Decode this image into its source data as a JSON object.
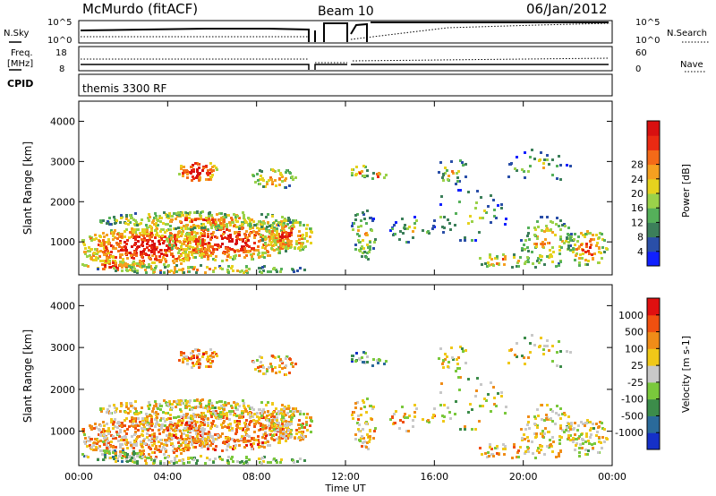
{
  "header": {
    "station": "McMurdo (fitACF)",
    "beam": "Beam 10",
    "date": "06/Jan/2012"
  },
  "strip_nsky": {
    "left_label": "N.Sky",
    "right_label": "N.Search",
    "left_ticks": [
      "10^5",
      "10^0"
    ],
    "right_ticks": [
      "10^5",
      "10^0"
    ]
  },
  "strip_freq": {
    "left_label_1": "Freq.",
    "left_label_2": "[MHz]",
    "right_label": "Nave",
    "left_ticks": [
      "18",
      "8"
    ],
    "right_ticks": [
      "60",
      "0"
    ]
  },
  "cpid": {
    "label": "CPID",
    "value": "themis 3300 RF"
  },
  "chart_data": [
    {
      "type": "heatmap",
      "name": "power",
      "ylabel": "Slant Range [km]",
      "xlabel": "Time UT",
      "ylim": [
        180,
        4500
      ],
      "yticks": [
        "1000",
        "2000",
        "3000",
        "4000"
      ],
      "xticks": [
        "00:00",
        "04:00",
        "08:00",
        "12:00",
        "16:00",
        "20:00",
        "00:00"
      ],
      "colorbar": {
        "label": "Power [dB]",
        "ticks": [
          "4",
          "8",
          "12",
          "16",
          "20",
          "24",
          "28"
        ],
        "colors": [
          "#1020ff",
          "#2a4fa8",
          "#3c7f5a",
          "#55b05a",
          "#9ad24a",
          "#e6d21e",
          "#f5a020",
          "#f46a18",
          "#ea2a12",
          "#d81010"
        ]
      }
    },
    {
      "type": "heatmap",
      "name": "velocity",
      "ylabel": "Slant Range [km]",
      "xlabel": "Time UT",
      "ylim": [
        180,
        4500
      ],
      "yticks": [
        "1000",
        "2000",
        "3000",
        "4000"
      ],
      "xticks": [
        "00:00",
        "04:00",
        "08:00",
        "12:00",
        "16:00",
        "20:00",
        "00:00"
      ],
      "colorbar": {
        "label": "Velocity [m s-1]",
        "ticks": [
          "1000",
          "500",
          "100",
          "25",
          "-25",
          "-100",
          "-500",
          "-1000"
        ],
        "colors": [
          "#1530c8",
          "#2a6a9a",
          "#3c8c4a",
          "#7ac83c",
          "#c8c8c8",
          "#f0c818",
          "#f08c18",
          "#f05010",
          "#e01010"
        ]
      }
    }
  ]
}
